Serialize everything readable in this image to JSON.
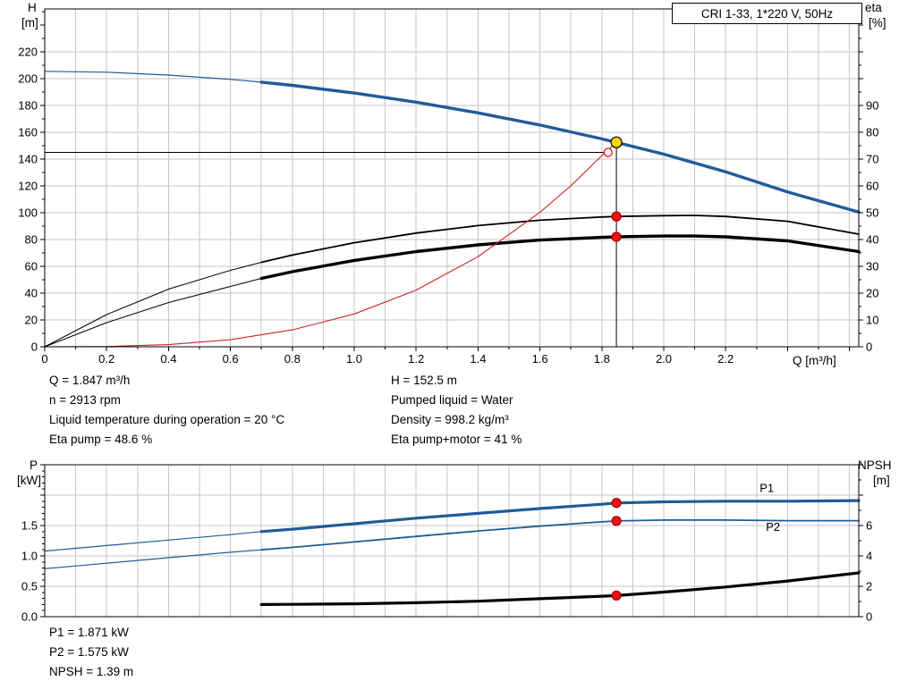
{
  "header": {
    "title": "CRI 1-33, 1*220 V, 50Hz"
  },
  "axes_labels": {
    "top_left_1": "H",
    "top_left_2": "[m]",
    "top_right_1": "eta",
    "top_right_2": "[%]",
    "x_axis": "Q [m³/h]",
    "bottom_left_1": "P",
    "bottom_left_2": "[kW]",
    "bottom_right_1": "NPSH",
    "bottom_right_2": "[m]"
  },
  "annotations": {
    "top_left": [
      "Q = 1.847 m³/h",
      "n = 2913 rpm",
      "Liquid temperature during operation = 20 °C",
      "Eta pump = 48.6 %"
    ],
    "top_right": [
      "H = 152.5 m",
      "Pumped liquid = Water",
      "Density = 998.2 kg/m³",
      "Eta pump+motor = 41 %"
    ],
    "bottom": [
      "P1 = 1.871 kW",
      "P2 = 1.575 kW",
      "NPSH = 1.39 m"
    ]
  },
  "colors": {
    "curve_blue": "#1f5c99",
    "curve_black": "#000000",
    "curve_red": "#cc2222",
    "marker_red": "#ee1111",
    "marker_yellow": "#ffd400",
    "grid": "#c6c6c6"
  },
  "chart_data": [
    {
      "type": "line",
      "name": "hq-eta-chart",
      "title": "CRI 1-33, 1*220 V, 50Hz",
      "grid_color": "#c6c6c6",
      "x": {
        "label": "Q [m³/h]",
        "min": 0,
        "max": 2.63,
        "grid_step": 0.1,
        "label_step": 0.2,
        "label_max": 2.2,
        "decimals": 1,
        "zero_label": "0"
      },
      "y_left": {
        "label": "H [m]",
        "min": 0,
        "max": 252,
        "grid_step": 20,
        "grid_max": 220,
        "minor_step": 10,
        "label_step": 20,
        "label_max": 220,
        "decimals": 0
      },
      "y_right": {
        "label": "eta [%]",
        "min": 0,
        "max": 126,
        "minor_step": 5,
        "label_step": 10,
        "label_max": 90,
        "decimals": 0
      },
      "series": [
        {
          "name": "head",
          "axis": "left",
          "color": "#1f5c99",
          "thin_width": 1.2,
          "width": 3.4,
          "split": 0.7,
          "points": [
            [
              0,
              205.5
            ],
            [
              0.2,
              204.8
            ],
            [
              0.4,
              202.7
            ],
            [
              0.6,
              199.5
            ],
            [
              0.7,
              197.4
            ],
            [
              0.8,
              195
            ],
            [
              1,
              189.3
            ],
            [
              1.2,
              182.5
            ],
            [
              1.4,
              174.5
            ],
            [
              1.6,
              165.4
            ],
            [
              1.8,
              155.1
            ],
            [
              1.847,
              152.5
            ],
            [
              2,
              143.7
            ],
            [
              2.2,
              130.5
            ],
            [
              2.4,
              115.5
            ],
            [
              2.63,
              100.5
            ]
          ]
        },
        {
          "name": "eta-pump",
          "axis": "right",
          "color": "#000000",
          "thin_width": 1,
          "width": 1.8,
          "split": 0.7,
          "points": [
            [
              0,
              0
            ],
            [
              0.1,
              6
            ],
            [
              0.2,
              12
            ],
            [
              0.4,
              21.5
            ],
            [
              0.6,
              28.5
            ],
            [
              0.7,
              31.5
            ],
            [
              0.8,
              34.2
            ],
            [
              1,
              38.8
            ],
            [
              1.2,
              42.4
            ],
            [
              1.4,
              45.2
            ],
            [
              1.6,
              47.2
            ],
            [
              1.8,
              48.4
            ],
            [
              1.847,
              48.6
            ],
            [
              2,
              48.9
            ],
            [
              2.1,
              49
            ],
            [
              2.2,
              48.6
            ],
            [
              2.4,
              46.8
            ],
            [
              2.63,
              42
            ]
          ]
        },
        {
          "name": "eta-pump-motor",
          "axis": "right",
          "color": "#000000",
          "thin_width": 1,
          "width": 3.4,
          "split": 0.7,
          "points": [
            [
              0,
              0
            ],
            [
              0.1,
              4.5
            ],
            [
              0.2,
              9
            ],
            [
              0.4,
              16.5
            ],
            [
              0.6,
              22.5
            ],
            [
              0.7,
              25.5
            ],
            [
              0.8,
              28
            ],
            [
              1,
              32.2
            ],
            [
              1.2,
              35.5
            ],
            [
              1.4,
              38
            ],
            [
              1.6,
              39.8
            ],
            [
              1.8,
              40.8
            ],
            [
              1.847,
              41
            ],
            [
              2,
              41.3
            ],
            [
              2.1,
              41.3
            ],
            [
              2.2,
              41
            ],
            [
              2.4,
              39.5
            ],
            [
              2.63,
              35.5
            ]
          ]
        },
        {
          "name": "system-curve",
          "axis": "left",
          "color": "#cc2222",
          "thin_width": 1.1,
          "width": 1.1,
          "split": 9,
          "points": [
            [
              0,
              0
            ],
            [
              0.2,
              0.2
            ],
            [
              0.4,
              1.6
            ],
            [
              0.6,
              5.3
            ],
            [
              0.8,
              12.6
            ],
            [
              1,
              24.5
            ],
            [
              1.2,
              42.3
            ],
            [
              1.4,
              67.2
            ],
            [
              1.6,
              100.3
            ],
            [
              1.7,
              120.1
            ],
            [
              1.8,
              142.6
            ],
            [
              1.847,
              152.5
            ]
          ]
        }
      ],
      "lines": [
        {
          "name": "duty-vertical-line",
          "x1": 1.847,
          "y1": 0,
          "x2": 1.847,
          "y2": 152.5,
          "axis": "left"
        },
        {
          "name": "duty-horizontal-line",
          "x1": 0,
          "y1": 145,
          "x2": 1.82,
          "y2": 145,
          "axis": "left"
        }
      ],
      "markers": [
        {
          "name": "requested-duty-point",
          "x": 1.82,
          "y": 145,
          "axis": "left",
          "r": 4.5,
          "fill": "#ffffff",
          "stroke": "#dd1111"
        },
        {
          "name": "actual-duty-point",
          "x": 1.847,
          "y": 152.5,
          "axis": "left",
          "r": 6,
          "fill": "#ffd400",
          "stroke": "#111111"
        },
        {
          "name": "eta-pump-duty-dot",
          "x": 1.847,
          "y": 48.6,
          "axis": "right",
          "r": 5,
          "fill": "#ee1111",
          "stroke": "#aa0000"
        },
        {
          "name": "eta-pump-motor-duty-dot",
          "x": 1.847,
          "y": 41,
          "axis": "right",
          "r": 5,
          "fill": "#ee1111",
          "stroke": "#aa0000"
        }
      ]
    },
    {
      "type": "line",
      "name": "power-npsh-chart",
      "grid_color": "#c6c6c6",
      "x": {
        "min": 0,
        "max": 2.63,
        "grid_step": 0.1,
        "label_step": 0.2,
        "label_max": -1,
        "decimals": 1,
        "show_ticks": false
      },
      "y_left": {
        "label": "P [kW]",
        "min": 0,
        "max": 2.5,
        "grid_step": 0.5,
        "grid_max": 2,
        "minor_step": 0.1,
        "label_step": 0.5,
        "label_max": 1.5,
        "decimals": 1
      },
      "y_right": {
        "label": "NPSH [m]",
        "min": 0,
        "max": 10,
        "minor_step": 1,
        "label_step": 2,
        "label_max": 6,
        "decimals": 0
      },
      "series": [
        {
          "name": "p1",
          "axis": "left",
          "color": "#1f5c99",
          "thin_width": 1.2,
          "width": 3.2,
          "split": 0.7,
          "points": [
            [
              0,
              1.08
            ],
            [
              0.2,
              1.17
            ],
            [
              0.4,
              1.26
            ],
            [
              0.6,
              1.35
            ],
            [
              0.7,
              1.4
            ],
            [
              0.8,
              1.44
            ],
            [
              1,
              1.53
            ],
            [
              1.2,
              1.62
            ],
            [
              1.4,
              1.7
            ],
            [
              1.6,
              1.78
            ],
            [
              1.8,
              1.85
            ],
            [
              1.847,
              1.871
            ],
            [
              2,
              1.89
            ],
            [
              2.2,
              1.9
            ],
            [
              2.4,
              1.9
            ],
            [
              2.63,
              1.91
            ]
          ]
        },
        {
          "name": "p2",
          "axis": "left",
          "color": "#1f5c99",
          "thin_width": 1.2,
          "width": 1.8,
          "split": 0.7,
          "points": [
            [
              0,
              0.79
            ],
            [
              0.2,
              0.88
            ],
            [
              0.4,
              0.97
            ],
            [
              0.6,
              1.06
            ],
            [
              0.7,
              1.1
            ],
            [
              0.8,
              1.14
            ],
            [
              1,
              1.23
            ],
            [
              1.2,
              1.32
            ],
            [
              1.4,
              1.41
            ],
            [
              1.6,
              1.49
            ],
            [
              1.8,
              1.56
            ],
            [
              1.847,
              1.575
            ],
            [
              2,
              1.59
            ],
            [
              2.2,
              1.59
            ],
            [
              2.4,
              1.58
            ],
            [
              2.63,
              1.58
            ]
          ]
        },
        {
          "name": "npsh",
          "axis": "right",
          "color": "#000000",
          "thin_width": 1,
          "width": 3.2,
          "split": 0,
          "points": [
            [
              0.7,
              0.8
            ],
            [
              0.8,
              0.81
            ],
            [
              1,
              0.85
            ],
            [
              1.2,
              0.92
            ],
            [
              1.4,
              1.02
            ],
            [
              1.6,
              1.18
            ],
            [
              1.8,
              1.35
            ],
            [
              1.847,
              1.39
            ],
            [
              2,
              1.62
            ],
            [
              2.2,
              1.95
            ],
            [
              2.4,
              2.35
            ],
            [
              2.63,
              2.88
            ]
          ]
        }
      ],
      "markers": [
        {
          "name": "p1-duty-dot",
          "x": 1.847,
          "y": 1.871,
          "axis": "left",
          "r": 5,
          "fill": "#ee1111",
          "stroke": "#aa0000"
        },
        {
          "name": "p2-duty-dot",
          "x": 1.847,
          "y": 1.575,
          "axis": "left",
          "r": 5,
          "fill": "#ee1111",
          "stroke": "#aa0000"
        },
        {
          "name": "npsh-duty-dot",
          "x": 1.847,
          "y": 1.39,
          "axis": "right",
          "r": 5,
          "fill": "#ee1111",
          "stroke": "#aa0000"
        }
      ],
      "text_labels": [
        {
          "name": "p1-label",
          "text": "P1",
          "x": 2.31,
          "y": 2.05,
          "axis": "left",
          "color": "#1f5c99"
        },
        {
          "name": "p2-label",
          "text": "P2",
          "x": 2.33,
          "y": 1.41,
          "axis": "left",
          "color": "#1f5c99"
        }
      ]
    }
  ]
}
